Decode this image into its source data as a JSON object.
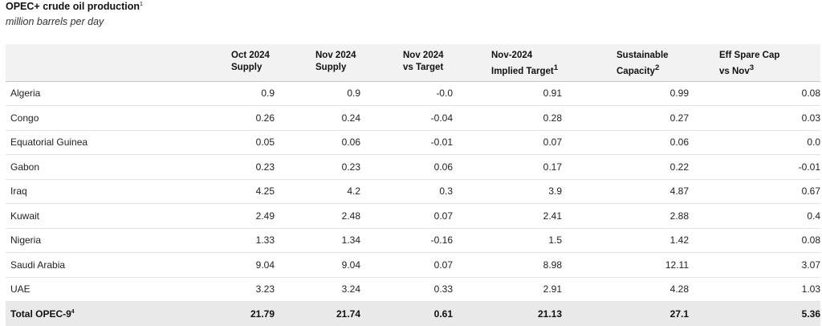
{
  "title": "OPEC+ crude oil production",
  "title_sup": "1",
  "subtitle": "million barrels per day",
  "headers": [
    {
      "line1": "Oct 2024",
      "line2": "Supply",
      "sup": ""
    },
    {
      "line1": "Nov 2024",
      "line2": "Supply",
      "sup": ""
    },
    {
      "line1": "Nov 2024",
      "line2": "vs Target",
      "sup": ""
    },
    {
      "line1": "Nov-2024",
      "line2": "Implied Target",
      "sup": "1"
    },
    {
      "line1": "Sustainable",
      "line2": "Capacity",
      "sup": "2"
    },
    {
      "line1": "Eff Spare Cap",
      "line2": "vs Nov",
      "sup": "3"
    }
  ],
  "rows": [
    {
      "country": "Algeria",
      "values": [
        "0.9",
        "0.9",
        "-0.0",
        "0.91",
        "0.99",
        "0.08"
      ]
    },
    {
      "country": "Congo",
      "values": [
        "0.26",
        "0.24",
        "-0.04",
        "0.28",
        "0.27",
        "0.03"
      ]
    },
    {
      "country": "Equatorial Guinea",
      "values": [
        "0.05",
        "0.06",
        "-0.01",
        "0.07",
        "0.06",
        "0.0"
      ]
    },
    {
      "country": "Gabon",
      "values": [
        "0.23",
        "0.23",
        "0.06",
        "0.17",
        "0.22",
        "-0.01"
      ]
    },
    {
      "country": "Iraq",
      "values": [
        "4.25",
        "4.2",
        "0.3",
        "3.9",
        "4.87",
        "0.67"
      ]
    },
    {
      "country": "Kuwait",
      "values": [
        "2.49",
        "2.48",
        "0.07",
        "2.41",
        "2.88",
        "0.4"
      ]
    },
    {
      "country": "Nigeria",
      "values": [
        "1.33",
        "1.34",
        "-0.16",
        "1.5",
        "1.42",
        "0.08"
      ]
    },
    {
      "country": "Saudi Arabia",
      "values": [
        "9.04",
        "9.04",
        "0.07",
        "8.98",
        "12.11",
        "3.07"
      ]
    },
    {
      "country": "UAE",
      "values": [
        "3.23",
        "3.24",
        "0.33",
        "2.91",
        "4.28",
        "1.03"
      ]
    }
  ],
  "total": {
    "label": "Total OPEC-9",
    "sup": "4",
    "values": [
      "21.79",
      "21.74",
      "0.61",
      "21.13",
      "27.1",
      "5.36"
    ]
  }
}
